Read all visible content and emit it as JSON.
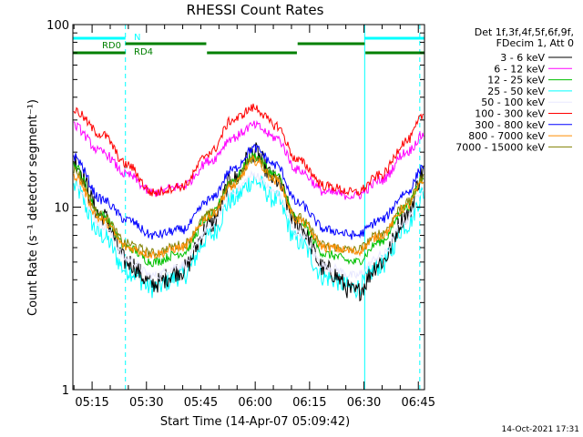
{
  "chart_data": {
    "type": "line",
    "title": "RHESSI Count Rates",
    "xlabel": "Start Time (14-Apr-07 05:09:42)",
    "ylabel": "Count Rate (s⁻¹ detector segment⁻¹)",
    "yscale": "log",
    "ylim": [
      1,
      100
    ],
    "y_ticks": [
      "1",
      "10",
      "100"
    ],
    "x_range_minutes": [
      0,
      97
    ],
    "x_ticks": [
      {
        "label": "05:15",
        "minute": 5.3
      },
      {
        "label": "05:30",
        "minute": 20.3
      },
      {
        "label": "05:45",
        "minute": 35.3
      },
      {
        "label": "06:00",
        "minute": 50.3
      },
      {
        "label": "06:15",
        "minute": 65.3
      },
      {
        "label": "06:30",
        "minute": 80.3
      },
      {
        "label": "06:45",
        "minute": 95.3
      }
    ],
    "legend_header": [
      "Det 1f,3f,4f,5f,6f,9f,",
      "FDecim 1, Att 0"
    ],
    "series": [
      {
        "name": "3 - 6 keV",
        "color": "#000000",
        "x": [
          0,
          8,
          15,
          22,
          30,
          38,
          44,
          50,
          56,
          62,
          70,
          78,
          85,
          92,
          97
        ],
        "y": [
          18,
          9,
          5.0,
          3.8,
          4.5,
          8.0,
          14,
          20,
          14,
          8.0,
          4.5,
          3.4,
          5.0,
          9.0,
          16
        ]
      },
      {
        "name": "6 - 12 keV",
        "color": "#ff00ff",
        "x": [
          0,
          8,
          15,
          22,
          30,
          38,
          44,
          50,
          56,
          62,
          70,
          78,
          85,
          92,
          97
        ],
        "y": [
          28,
          20,
          15,
          12,
          13,
          18,
          24,
          28,
          24,
          16,
          12,
          11.5,
          14,
          20,
          25
        ]
      },
      {
        "name": "12 - 25 keV",
        "color": "#00c000",
        "x": [
          0,
          8,
          15,
          22,
          30,
          38,
          44,
          50,
          56,
          62,
          70,
          78,
          85,
          92,
          97
        ],
        "y": [
          17,
          9,
          6.0,
          5.0,
          5.6,
          9.0,
          14,
          19,
          15,
          8.5,
          5.5,
          5.0,
          6.5,
          10,
          15
        ]
      },
      {
        "name": "25 - 50 keV",
        "color": "#00ffff",
        "x": [
          0,
          8,
          15,
          22,
          30,
          38,
          44,
          50,
          56,
          62,
          70,
          78,
          85,
          92,
          97
        ],
        "y": [
          13,
          7,
          4.5,
          3.6,
          4.2,
          7.0,
          11,
          14,
          11,
          6.5,
          4.1,
          3.6,
          4.8,
          8.0,
          12
        ]
      },
      {
        "name": "50 - 100 keV",
        "color": "#e8e8ff",
        "x": [
          0,
          8,
          15,
          22,
          30,
          38,
          44,
          50,
          56,
          62,
          70,
          78,
          85,
          92,
          97
        ],
        "y": [
          14,
          8,
          5.2,
          4.2,
          4.8,
          7.8,
          12,
          15,
          12,
          7.2,
          4.7,
          4.2,
          5.4,
          8.5,
          13
        ]
      },
      {
        "name": "100 - 300 keV",
        "color": "#ff0000",
        "x": [
          0,
          8,
          15,
          22,
          30,
          38,
          44,
          50,
          56,
          62,
          70,
          78,
          85,
          92,
          97
        ],
        "y": [
          34,
          25,
          17,
          12,
          13,
          20,
          30,
          35,
          28,
          18,
          13,
          12,
          15,
          23,
          32
        ]
      },
      {
        "name": "300 - 800 keV",
        "color": "#0000ff",
        "x": [
          0,
          8,
          15,
          22,
          30,
          38,
          44,
          50,
          56,
          62,
          70,
          78,
          85,
          92,
          97
        ],
        "y": [
          19,
          11,
          8.5,
          7.0,
          7.5,
          11,
          16,
          21,
          17,
          10.5,
          7.5,
          7.0,
          8.5,
          12,
          17
        ]
      },
      {
        "name": "800 - 7000 keV",
        "color": "#ff8c00",
        "x": [
          0,
          8,
          15,
          22,
          30,
          38,
          44,
          50,
          56,
          62,
          70,
          78,
          85,
          92,
          97
        ],
        "y": [
          15,
          8.5,
          6.0,
          5.5,
          6.0,
          9.0,
          13,
          18,
          14,
          8.5,
          6.0,
          5.7,
          7.0,
          10,
          14
        ]
      },
      {
        "name": "7000 - 15000 keV",
        "color": "#808000",
        "x": [
          0,
          8,
          15,
          22,
          30,
          38,
          44,
          50,
          56,
          62,
          70,
          78,
          85,
          92,
          97
        ],
        "y": [
          16,
          9,
          6.3,
          5.6,
          6.2,
          9.2,
          13.5,
          18.5,
          14.5,
          8.8,
          6.1,
          5.8,
          7.2,
          10.5,
          14.5
        ]
      }
    ],
    "flags": [
      {
        "label": "N",
        "color": "#00ffff",
        "segments_minutes": [
          [
            0,
            14.5
          ],
          [
            80.5,
            97
          ]
        ],
        "level": 1
      },
      {
        "label": "RD0",
        "color": "#008000",
        "segments_minutes": [
          [
            0,
            14.5
          ]
        ],
        "level": 2
      },
      {
        "label": "RD4",
        "color": "#008000",
        "segments_minutes": [
          [
            14.5,
            36.8
          ],
          [
            37.0,
            61.8
          ],
          [
            62.0,
            80.5
          ],
          [
            80.7,
            97
          ]
        ],
        "level": 3
      }
    ],
    "markers_minutes": [
      {
        "x": 0,
        "style": "solid"
      },
      {
        "x": 14.5,
        "style": "dashed"
      },
      {
        "x": 80.5,
        "style": "solid"
      },
      {
        "x": 95.7,
        "style": "dashed"
      }
    ],
    "timestamp": "14-Oct-2021 17:31"
  }
}
